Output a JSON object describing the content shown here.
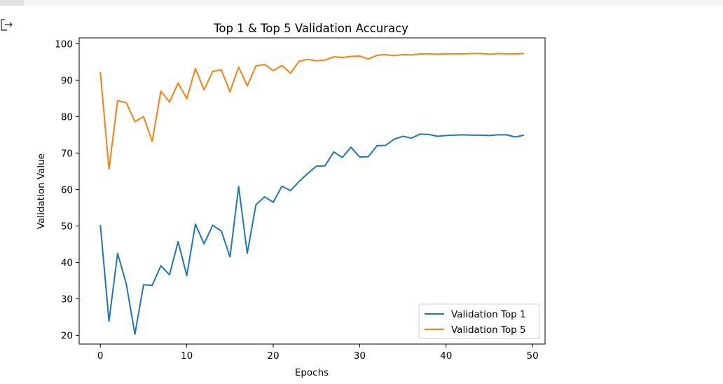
{
  "cell": {
    "output_icon": "output-arrow-icon"
  },
  "chart_data": {
    "type": "line",
    "title": "Top 1 & Top 5 Validation Accuracy",
    "xlabel": "Epochs",
    "ylabel": "Validation Value",
    "xlim": [
      -2.45,
      51.45
    ],
    "ylim": [
      17.6,
      101.6
    ],
    "xticks": [
      0,
      10,
      20,
      30,
      40,
      50
    ],
    "yticks": [
      20,
      30,
      40,
      50,
      60,
      70,
      80,
      90,
      100
    ],
    "grid": false,
    "legend_position": "lower-right",
    "colors": [
      "#1f77b4",
      "#ff7f0e"
    ],
    "x": [
      0,
      1,
      2,
      3,
      4,
      5,
      6,
      7,
      8,
      9,
      10,
      11,
      12,
      13,
      14,
      15,
      16,
      17,
      18,
      19,
      20,
      21,
      22,
      23,
      24,
      25,
      26,
      27,
      28,
      29,
      30,
      31,
      32,
      33,
      34,
      35,
      36,
      37,
      38,
      39,
      40,
      41,
      42,
      43,
      44,
      45,
      46,
      47,
      48,
      49
    ],
    "series": [
      {
        "name": "Validation Top 1",
        "values": [
          50.3,
          23.9,
          42.5,
          34.1,
          20.3,
          33.9,
          33.7,
          39.1,
          36.6,
          45.7,
          36.4,
          50.5,
          45.1,
          50.2,
          48.6,
          41.5,
          60.8,
          42.5,
          55.8,
          58.0,
          56.5,
          60.9,
          59.7,
          62.2,
          64.4,
          66.4,
          66.5,
          70.3,
          68.8,
          71.6,
          68.9,
          69.0,
          72.0,
          72.1,
          73.8,
          74.6,
          74.1,
          75.2,
          75.1,
          74.6,
          74.8,
          74.9,
          75.0,
          74.9,
          74.9,
          74.8,
          75.0,
          75.0,
          74.4,
          74.9
        ]
      },
      {
        "name": "Validation Top 5",
        "values": [
          92.2,
          65.6,
          84.4,
          83.8,
          78.6,
          80.0,
          73.2,
          87.0,
          84.0,
          89.2,
          84.9,
          93.2,
          87.3,
          92.4,
          92.8,
          86.8,
          93.6,
          88.4,
          93.9,
          94.3,
          92.6,
          94.0,
          91.9,
          95.2,
          95.7,
          95.3,
          95.5,
          96.4,
          96.2,
          96.5,
          96.6,
          95.8,
          96.8,
          97.0,
          96.7,
          97.0,
          96.9,
          97.2,
          97.2,
          97.1,
          97.2,
          97.2,
          97.2,
          97.3,
          97.3,
          97.1,
          97.3,
          97.2,
          97.2,
          97.3
        ]
      }
    ]
  }
}
